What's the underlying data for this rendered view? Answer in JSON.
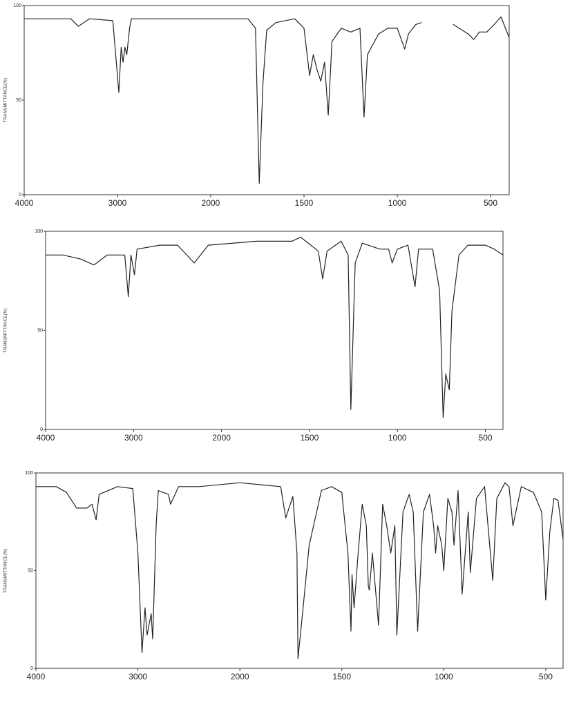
{
  "chart_data": [
    {
      "type": "line",
      "y_label": "TRANSMITTANCE(%)",
      "color": "#222222",
      "xlim": [
        4000,
        400
      ],
      "xticks": [
        4000,
        3000,
        2000,
        1500,
        1000,
        500
      ],
      "ylim": [
        0,
        100
      ],
      "yticks": [
        0,
        50,
        100
      ],
      "x": [
        4000,
        3500,
        3420,
        3300,
        3050,
        2985,
        2960,
        2940,
        2920,
        2900,
        2870,
        2850,
        2000,
        1800,
        1760,
        1740,
        1720,
        1700,
        1650,
        1550,
        1500,
        1470,
        1450,
        1430,
        1410,
        1390,
        1370,
        1350,
        1300,
        1250,
        1200,
        1178,
        1160,
        1100,
        1050,
        1000,
        960,
        940,
        900,
        870,
        800,
        700,
        620,
        590,
        560,
        520,
        480,
        444,
        400
      ],
      "values": [
        93,
        93,
        89,
        93,
        92,
        54,
        78,
        70,
        78,
        74,
        88,
        93,
        93,
        93,
        88,
        6,
        59,
        87,
        91,
        93,
        88,
        63,
        74,
        66,
        60,
        70,
        42,
        81,
        88,
        86,
        88,
        41,
        74,
        85,
        88,
        88,
        77,
        85,
        90,
        91,
        null,
        90,
        85,
        82,
        86,
        86,
        90,
        94,
        83
      ]
    },
    {
      "type": "line",
      "y_label": "TRANSMITTANCE(%)",
      "color": "#222222",
      "xlim": [
        4000,
        400
      ],
      "xticks": [
        4000,
        3000,
        2000,
        1500,
        1000,
        500
      ],
      "ylim": [
        0,
        100
      ],
      "yticks": [
        0,
        50,
        100
      ],
      "x": [
        4000,
        3800,
        3600,
        3450,
        3300,
        3100,
        3060,
        3030,
        2990,
        2960,
        2700,
        2500,
        2310,
        2150,
        1800,
        1600,
        1550,
        1450,
        1425,
        1400,
        1320,
        1280,
        1265,
        1240,
        1200,
        1100,
        1050,
        1030,
        1000,
        940,
        900,
        880,
        800,
        760,
        740,
        725,
        705,
        690,
        650,
        600,
        500,
        450,
        400
      ],
      "values": [
        88,
        88,
        86,
        83,
        88,
        88,
        67,
        88,
        78,
        91,
        93,
        93,
        84,
        93,
        95,
        95,
        97,
        90,
        76,
        90,
        95,
        88,
        10,
        84,
        94,
        91,
        91,
        84,
        91,
        93,
        72,
        91,
        91,
        70,
        6,
        28,
        20,
        60,
        88,
        93,
        93,
        91,
        88
      ]
    },
    {
      "type": "line",
      "y_label": "TRANSMITTANCE(%)",
      "color": "#222222",
      "xlim": [
        4000,
        415
      ],
      "xticks": [
        4000,
        3000,
        2000,
        1500,
        1000,
        500
      ],
      "ylim": [
        0,
        100
      ],
      "yticks": [
        0,
        50,
        100
      ],
      "x": [
        4000,
        3800,
        3700,
        3600,
        3500,
        3450,
        3410,
        3380,
        3200,
        3050,
        3000,
        2960,
        2930,
        2910,
        2870,
        2855,
        2820,
        2800,
        2700,
        2680,
        2600,
        2400,
        2000,
        1800,
        1775,
        1740,
        1720,
        1715,
        1690,
        1660,
        1600,
        1550,
        1500,
        1470,
        1455,
        1450,
        1440,
        1420,
        1400,
        1380,
        1370,
        1365,
        1350,
        1320,
        1300,
        1280,
        1260,
        1240,
        1230,
        1200,
        1170,
        1150,
        1128,
        1100,
        1070,
        1050,
        1040,
        1030,
        1010,
        1000,
        980,
        960,
        950,
        930,
        910,
        880,
        870,
        840,
        800,
        760,
        740,
        700,
        680,
        661,
        620,
        560,
        520,
        500,
        480,
        460,
        440,
        415
      ],
      "values": [
        93,
        93,
        90,
        82,
        82,
        84,
        76,
        89,
        93,
        92,
        59,
        8,
        31,
        17,
        28,
        15,
        74,
        91,
        89,
        84,
        93,
        93,
        95,
        93,
        77,
        88,
        59,
        5,
        31,
        63,
        91,
        93,
        90,
        59,
        19,
        48,
        31,
        59,
        84,
        73,
        42,
        40,
        59,
        22,
        84,
        73,
        59,
        73,
        17,
        80,
        89,
        80,
        19,
        80,
        89,
        73,
        59,
        73,
        63,
        50,
        87,
        80,
        63,
        91,
        38,
        80,
        49,
        87,
        93,
        45,
        87,
        95,
        93,
        73,
        93,
        90,
        80,
        35,
        70,
        87,
        86,
        66
      ]
    }
  ]
}
